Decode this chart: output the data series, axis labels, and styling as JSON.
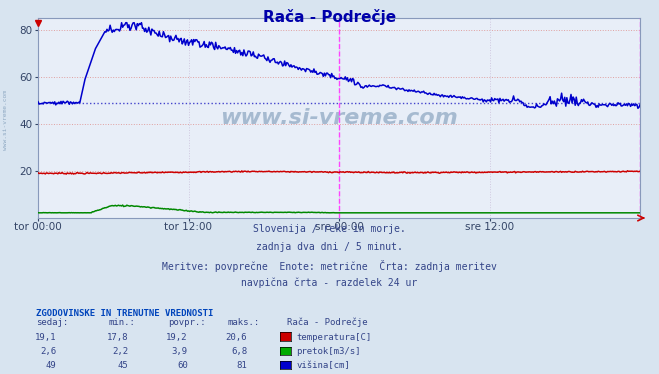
{
  "title": "Rača - Podrečje",
  "bg_color": "#d8e4f0",
  "plot_bg_color": "#e8eef8",
  "grid_color_h": "#e0a0a0",
  "grid_color_v": "#d0c8e0",
  "xlabel_ticks": [
    "tor 00:00",
    "tor 12:00",
    "sre 00:00",
    "sre 12:00"
  ],
  "xlabel_tick_pos": [
    0,
    144,
    288,
    432
  ],
  "total_points": 577,
  "ylim": [
    0,
    85
  ],
  "yticks": [
    20,
    40,
    60,
    80
  ],
  "subtitle_lines": [
    "Slovenija / reke in morje.",
    "zadnja dva dni / 5 minut.",
    "Meritve: povprečne  Enote: metrične  Črta: zadnja meritev",
    "navpična črta - razdelek 24 ur"
  ],
  "legend_header": "ZGODOVINSKE IN TRENUTNE VREDNOSTI",
  "legend_col_headers": [
    "sedaj:",
    "min.:",
    "povpr.:",
    "maks.:",
    "Rača - Podrečje"
  ],
  "legend_rows": [
    [
      "19,1",
      "17,8",
      "19,2",
      "20,6",
      "temperatura[C]",
      "#cc0000"
    ],
    [
      "2,6",
      "2,2",
      "3,9",
      "6,8",
      "pretok[m3/s]",
      "#00aa00"
    ],
    [
      "49",
      "45",
      "60",
      "81",
      "višina[cm]",
      "#0000cc"
    ]
  ],
  "temp_color": "#cc0000",
  "flow_color": "#008800",
  "height_color": "#0000cc",
  "avg_line_color": "#4444cc",
  "avg_line_value": 49,
  "vline_color": "#ff44ff",
  "vline_positions": [
    288,
    576
  ],
  "watermark_color": "#7090b0",
  "watermark_side_color": "#7090b0"
}
